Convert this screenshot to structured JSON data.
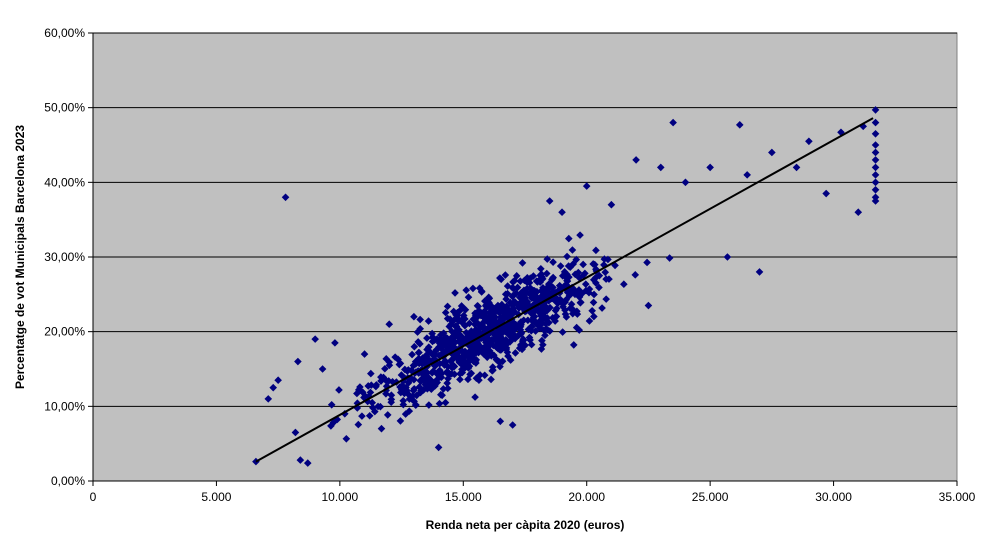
{
  "chart_data": {
    "type": "scatter",
    "title": "",
    "xlabel": "Renda neta per càpita 2020 (euros)",
    "ylabel": "Percentatge de vot Municipals Barcelona 2023",
    "xlim": [
      0,
      35000
    ],
    "ylim": [
      0,
      60
    ],
    "x_ticks": [
      0,
      5000,
      10000,
      15000,
      20000,
      25000,
      30000,
      35000
    ],
    "x_tick_labels": [
      "0",
      "5.000",
      "10.000",
      "15.000",
      "20.000",
      "25.000",
      "30.000",
      "35.000"
    ],
    "y_ticks": [
      0,
      10,
      20,
      30,
      40,
      50,
      60
    ],
    "y_tick_labels": [
      "0,00%",
      "10,00%",
      "20,00%",
      "30,00%",
      "40,00%",
      "50,00%",
      "60,00%"
    ],
    "grid": "horizontal",
    "plot_background": "#c0c0c0",
    "marker_color": "#000080",
    "trendline_color": "#000000",
    "trendline": {
      "x": [
        6600,
        31600
      ],
      "y": [
        2.6,
        48.6
      ]
    },
    "point_count_estimate": 1000,
    "points": [
      [
        7800,
        38
      ],
      [
        6600,
        2.6
      ],
      [
        7100,
        11
      ],
      [
        7300,
        12.5
      ],
      [
        7500,
        13.5
      ],
      [
        8200,
        6.5
      ],
      [
        8300,
        16
      ],
      [
        8400,
        2.8
      ],
      [
        8700,
        2.4
      ],
      [
        9000,
        19
      ],
      [
        9300,
        15
      ],
      [
        9800,
        18.5
      ],
      [
        10200,
        9
      ],
      [
        11000,
        17
      ],
      [
        12000,
        21
      ],
      [
        13000,
        22
      ],
      [
        14000,
        4.5
      ],
      [
        16500,
        8
      ],
      [
        17000,
        7.5
      ],
      [
        18500,
        37.5
      ],
      [
        19000,
        36
      ],
      [
        20000,
        39.5
      ],
      [
        21000,
        37
      ],
      [
        22000,
        43
      ],
      [
        22500,
        23.5
      ],
      [
        23000,
        42
      ],
      [
        23500,
        48
      ],
      [
        24000,
        40
      ],
      [
        25000,
        42
      ],
      [
        25700,
        30
      ],
      [
        26200,
        47.7
      ],
      [
        26500,
        41
      ],
      [
        27000,
        28
      ],
      [
        27500,
        44
      ],
      [
        28500,
        42
      ],
      [
        29000,
        45.5
      ],
      [
        29700,
        38.5
      ],
      [
        30300,
        46.7
      ],
      [
        31000,
        36
      ],
      [
        31200,
        47.5
      ],
      [
        31700,
        49.7
      ],
      [
        31700,
        48
      ],
      [
        31700,
        46.5
      ],
      [
        31700,
        45
      ],
      [
        31700,
        44
      ],
      [
        31700,
        43
      ],
      [
        31700,
        42
      ],
      [
        31700,
        41
      ],
      [
        31700,
        40
      ],
      [
        31700,
        39
      ],
      [
        31700,
        38
      ],
      [
        31700,
        37.5
      ]
    ]
  }
}
